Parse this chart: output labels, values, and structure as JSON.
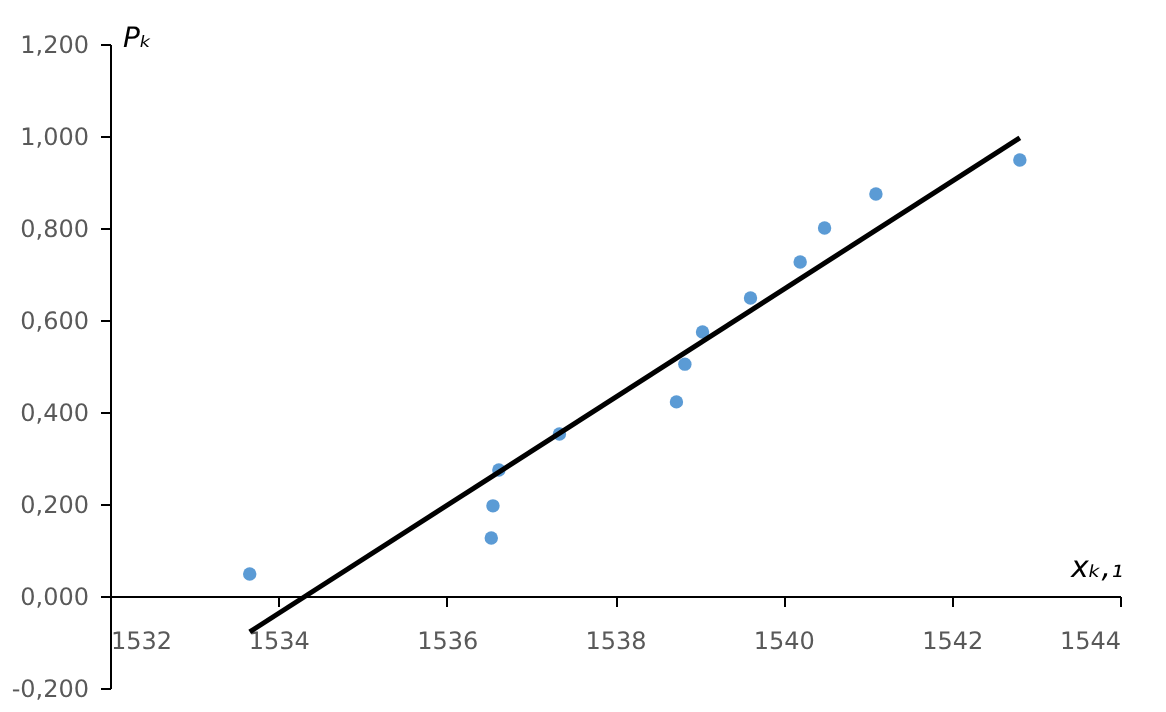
{
  "chart_data": {
    "type": "scatter",
    "xlabel": "xₖ,₁",
    "ylabel": "Pₖ",
    "xlim": [
      1532,
      1544
    ],
    "xticks": [
      1532,
      1534,
      1536,
      1538,
      1540,
      1542,
      1544
    ],
    "ylim": [
      -0.2,
      1.2
    ],
    "yticks": [
      {
        "value": -0.2,
        "label": "-0,200"
      },
      {
        "value": 0,
        "label": "0,000"
      },
      {
        "value": 0.2,
        "label": "0,200"
      },
      {
        "value": 0.4,
        "label": "0,400"
      },
      {
        "value": 0.6,
        "label": "0,600"
      },
      {
        "value": 0.8,
        "label": "0,800"
      },
      {
        "value": 1.0,
        "label": "1,000"
      },
      {
        "value": 1.2,
        "label": "1,200"
      }
    ],
    "grid": false,
    "series": [
      {
        "marker": "circle",
        "color": "#5b9bd5",
        "x": [
          1533.66,
          1536.55,
          1536.53,
          1536.62,
          1537.34,
          1538.73,
          1538.83,
          1539.04,
          1539.61,
          1540.2,
          1540.49,
          1541.1,
          1542.81
        ],
        "values": [
          0.048,
          0.196,
          0.126,
          0.274,
          0.352,
          0.422,
          0.504,
          0.574,
          0.648,
          0.726,
          0.8,
          0.874,
          0.948
        ]
      },
      {
        "type": "line",
        "marker": "none",
        "color": "#000000",
        "line_style": "solid",
        "x": [
          1533.66,
          1542.81
        ],
        "values": [
          -0.078,
          0.996
        ]
      }
    ]
  }
}
